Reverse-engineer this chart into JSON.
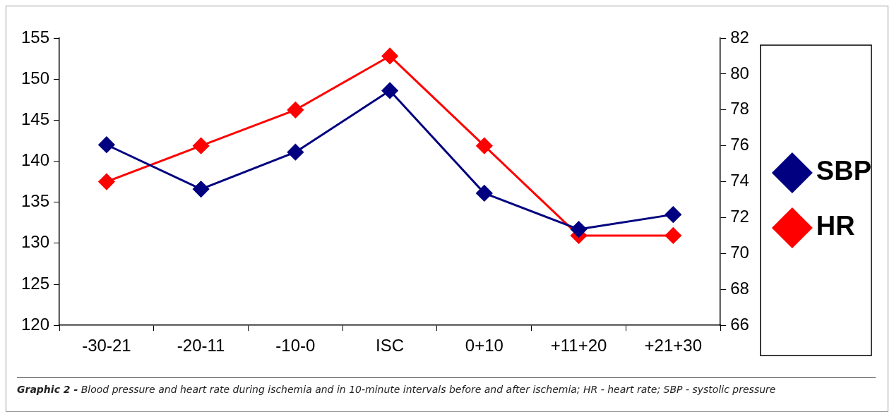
{
  "chart_data": {
    "type": "line",
    "categories": [
      "-30-21",
      "-20-11",
      "-10-0",
      "ISC",
      "0+10",
      "+11+20",
      "+21+30"
    ],
    "series": [
      {
        "name": "SBP",
        "color": "#000080",
        "values": [
          142,
          136.6,
          141.1,
          148.6,
          136.1,
          131.7,
          133.5
        ]
      },
      {
        "name": "HR",
        "color": "#ff0000",
        "axis": "y2",
        "values": [
          74,
          76,
          78,
          81,
          76,
          71,
          71
        ]
      }
    ],
    "ylim": [
      120,
      155
    ],
    "yticks": [
      120,
      125,
      130,
      135,
      140,
      145,
      150,
      155
    ],
    "y2lim": [
      66,
      82
    ],
    "y2ticks": [
      66,
      68,
      70,
      72,
      74,
      76,
      78,
      80,
      82
    ],
    "marker": "diamond",
    "legend": "right",
    "annotations": [
      "Graphic 2 -",
      "Blood pressure and heart rate during ischemia and in 10-minute intervals before and after ischemia; HR - heart rate; SBP - systolic pressure"
    ]
  }
}
